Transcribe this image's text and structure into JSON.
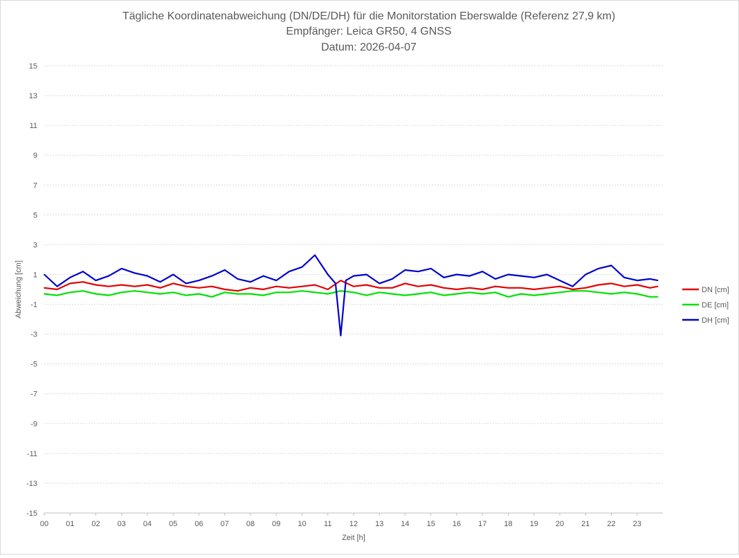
{
  "chart_data": {
    "type": "line",
    "title": [
      "Tägliche Koordinatenabweichung (DN/DE/DH) für die Monitorstation Eberswalde (Referenz 27,9 km)",
      "Empfänger: Leica GR50, 4 GNSS",
      "Datum: 2026-04-07"
    ],
    "xlabel": "Zeit [h]",
    "ylabel": "Abweichung [cm]",
    "x_tick_labels": [
      "00",
      "01",
      "02",
      "03",
      "04",
      "05",
      "06",
      "07",
      "08",
      "09",
      "10",
      "11",
      "12",
      "13",
      "14",
      "15",
      "16",
      "17",
      "18",
      "19",
      "20",
      "21",
      "22",
      "23"
    ],
    "y_ticks": [
      15,
      13,
      11,
      9,
      7,
      5,
      3,
      1,
      -1,
      -3,
      -5,
      -7,
      -9,
      -11,
      -13,
      -15
    ],
    "xlim": [
      0,
      24
    ],
    "ylim": [
      -15,
      15
    ],
    "grid": "horizontal dotted",
    "legend_position": "right",
    "series": [
      {
        "name": "DN [cm]",
        "color": "#e30000",
        "x": [
          0,
          0.5,
          1,
          1.5,
          2,
          2.5,
          3,
          3.5,
          4,
          4.5,
          5,
          5.5,
          6,
          6.5,
          7,
          7.5,
          8,
          8.5,
          9,
          9.5,
          10,
          10.5,
          11,
          11.5,
          12,
          12.5,
          13,
          13.5,
          14,
          14.5,
          15,
          15.5,
          16,
          16.5,
          17,
          17.5,
          18,
          18.5,
          19,
          19.5,
          20,
          20.5,
          21,
          21.5,
          22,
          22.5,
          23,
          23.5,
          23.8
        ],
        "values": [
          0.1,
          0.0,
          0.4,
          0.5,
          0.3,
          0.2,
          0.3,
          0.2,
          0.3,
          0.1,
          0.4,
          0.2,
          0.1,
          0.2,
          0.0,
          -0.1,
          0.1,
          0.0,
          0.2,
          0.1,
          0.2,
          0.3,
          0.0,
          0.6,
          0.2,
          0.3,
          0.1,
          0.1,
          0.4,
          0.2,
          0.3,
          0.1,
          0.0,
          0.1,
          0.0,
          0.2,
          0.1,
          0.1,
          0.0,
          0.1,
          0.2,
          0.0,
          0.1,
          0.3,
          0.4,
          0.2,
          0.3,
          0.1,
          0.2
        ]
      },
      {
        "name": "DE [cm]",
        "color": "#00e000",
        "x": [
          0,
          0.5,
          1,
          1.5,
          2,
          2.5,
          3,
          3.5,
          4,
          4.5,
          5,
          5.5,
          6,
          6.5,
          7,
          7.5,
          8,
          8.5,
          9,
          9.5,
          10,
          10.5,
          11,
          11.5,
          12,
          12.5,
          13,
          13.5,
          14,
          14.5,
          15,
          15.5,
          16,
          16.5,
          17,
          17.5,
          18,
          18.5,
          19,
          19.5,
          20,
          20.5,
          21,
          21.5,
          22,
          22.5,
          23,
          23.5,
          23.8
        ],
        "values": [
          -0.3,
          -0.4,
          -0.2,
          -0.1,
          -0.3,
          -0.4,
          -0.2,
          -0.1,
          -0.2,
          -0.3,
          -0.2,
          -0.4,
          -0.3,
          -0.5,
          -0.2,
          -0.3,
          -0.3,
          -0.4,
          -0.2,
          -0.2,
          -0.1,
          -0.2,
          -0.3,
          -0.1,
          -0.2,
          -0.4,
          -0.2,
          -0.3,
          -0.4,
          -0.3,
          -0.2,
          -0.4,
          -0.3,
          -0.2,
          -0.3,
          -0.2,
          -0.5,
          -0.3,
          -0.4,
          -0.3,
          -0.2,
          -0.1,
          -0.1,
          -0.2,
          -0.3,
          -0.2,
          -0.3,
          -0.5,
          -0.5
        ]
      },
      {
        "name": "DH [cm]",
        "color": "#0000cc",
        "x": [
          0,
          0.5,
          1,
          1.5,
          2,
          2.5,
          3,
          3.5,
          4,
          4.5,
          5,
          5.5,
          6,
          6.5,
          7,
          7.5,
          8,
          8.5,
          9,
          9.5,
          10,
          10.5,
          11,
          11.3,
          11.5,
          11.7,
          12,
          12.5,
          13,
          13.5,
          14,
          14.5,
          15,
          15.5,
          16,
          16.5,
          17,
          17.5,
          18,
          18.5,
          19,
          19.5,
          20,
          20.5,
          21,
          21.5,
          22,
          22.5,
          23,
          23.5,
          23.8
        ],
        "values": [
          1.0,
          0.2,
          0.8,
          1.2,
          0.6,
          0.9,
          1.4,
          1.1,
          0.9,
          0.5,
          1.0,
          0.4,
          0.6,
          0.9,
          1.3,
          0.7,
          0.5,
          0.9,
          0.6,
          1.2,
          1.5,
          2.3,
          1.0,
          0.4,
          -3.1,
          0.6,
          0.9,
          1.0,
          0.4,
          0.7,
          1.3,
          1.2,
          1.4,
          0.8,
          1.0,
          0.9,
          1.2,
          0.7,
          1.0,
          0.9,
          0.8,
          1.0,
          0.6,
          0.2,
          1.0,
          1.4,
          1.6,
          0.8,
          0.6,
          0.7,
          0.6
        ]
      }
    ]
  }
}
